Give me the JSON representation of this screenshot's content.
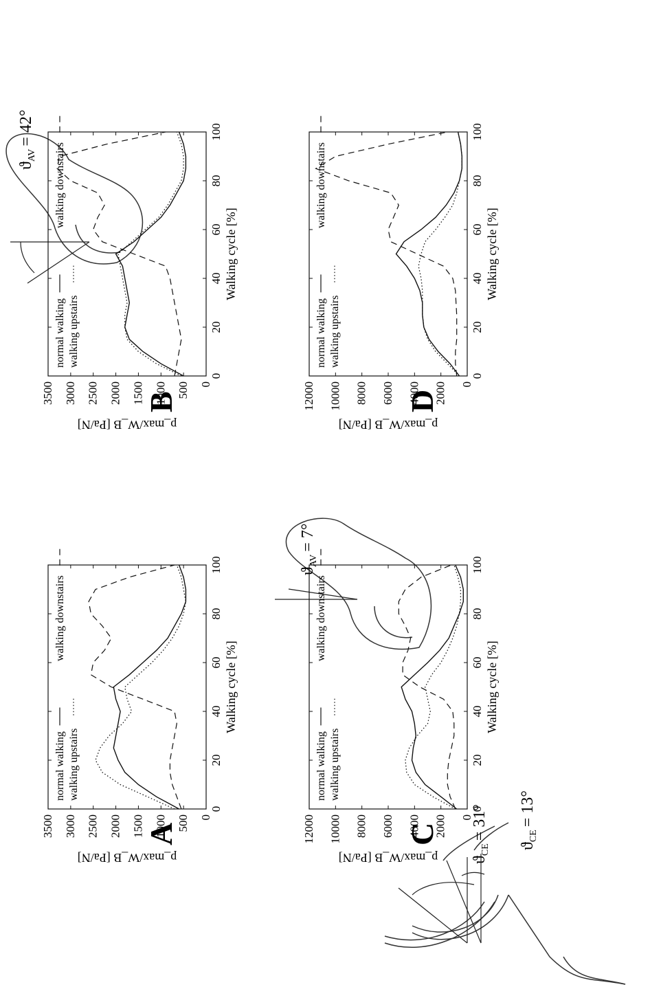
{
  "panels": [
    {
      "letter": "A",
      "angle": {
        "symbol": "ϑ",
        "sub": "AV",
        "value": "= 7°"
      }
    },
    {
      "letter": "B",
      "angle": {
        "symbol": "ϑ",
        "sub": "AV",
        "value": "= 42°"
      }
    },
    {
      "letter": "C"
    },
    {
      "letter": "D"
    }
  ],
  "side_figures": [
    {
      "symbol": "ϑ",
      "sub": "CE",
      "value": "= 31°"
    },
    {
      "symbol": "ϑ",
      "sub": "CE",
      "value": "= 13°"
    }
  ],
  "chart_data": [
    {
      "type": "line",
      "panel": "A",
      "xlabel": "Walking cycle [%]",
      "ylabel": "p_max/W_B [Pa/N]",
      "xlim": [
        0,
        100
      ],
      "ylim": [
        0,
        3500
      ],
      "xticks": [
        0,
        20,
        40,
        60,
        80,
        100
      ],
      "yticks": [
        0,
        500,
        1000,
        1500,
        2000,
        2500,
        3000,
        3500
      ],
      "legend": [
        "normal walking",
        "walking downstairs",
        "walking upstairs"
      ],
      "series": [
        {
          "name": "normal walking",
          "style": "solid",
          "x": [
            0,
            5,
            10,
            15,
            20,
            25,
            30,
            35,
            40,
            45,
            50,
            55,
            60,
            65,
            70,
            75,
            80,
            85,
            90,
            95,
            100
          ],
          "y": [
            600,
            1100,
            1500,
            1800,
            1950,
            2050,
            2000,
            1950,
            1900,
            2000,
            2050,
            1700,
            1400,
            1100,
            850,
            700,
            550,
            450,
            450,
            500,
            600
          ]
        },
        {
          "name": "walking upstairs",
          "style": "dotted",
          "x": [
            0,
            5,
            10,
            15,
            20,
            25,
            30,
            35,
            40,
            45,
            50,
            55,
            60,
            65,
            70,
            75,
            80,
            85,
            90,
            95,
            100
          ],
          "y": [
            700,
            1300,
            1900,
            2300,
            2450,
            2350,
            2150,
            1850,
            1650,
            1750,
            1800,
            1500,
            1200,
            950,
            750,
            600,
            500,
            450,
            500,
            550,
            650
          ]
        },
        {
          "name": "walking downstairs",
          "style": "dashed",
          "x": [
            0,
            5,
            10,
            15,
            20,
            25,
            30,
            35,
            40,
            45,
            50,
            55,
            60,
            65,
            70,
            75,
            80,
            85,
            90,
            95,
            100
          ],
          "y": [
            550,
            650,
            750,
            800,
            800,
            750,
            700,
            650,
            700,
            1400,
            2100,
            2550,
            2500,
            2250,
            2100,
            2300,
            2550,
            2600,
            2450,
            1700,
            700
          ]
        }
      ]
    },
    {
      "type": "line",
      "panel": "B",
      "xlabel": "Walking cycle [%]",
      "ylabel": "p_max/W_B [Pa/N]",
      "xlim": [
        0,
        100
      ],
      "ylim": [
        0,
        3500
      ],
      "xticks": [
        0,
        20,
        40,
        60,
        80,
        100
      ],
      "yticks": [
        0,
        500,
        1000,
        1500,
        2000,
        2500,
        3000,
        3500
      ],
      "legend": [
        "normal walking",
        "walking downstairs",
        "walking upstairs"
      ],
      "series": [
        {
          "name": "normal walking",
          "style": "solid",
          "x": [
            0,
            5,
            10,
            15,
            20,
            25,
            30,
            35,
            40,
            45,
            50,
            55,
            60,
            65,
            70,
            75,
            80,
            85,
            90,
            95,
            100
          ],
          "y": [
            500,
            1000,
            1400,
            1700,
            1800,
            1750,
            1700,
            1750,
            1800,
            1850,
            2000,
            1600,
            1300,
            1000,
            800,
            650,
            500,
            450,
            450,
            500,
            600
          ]
        },
        {
          "name": "walking upstairs",
          "style": "dotted",
          "x": [
            0,
            5,
            10,
            15,
            20,
            25,
            30,
            35,
            40,
            45,
            50,
            55,
            60,
            65,
            70,
            75,
            80,
            85,
            90,
            95,
            100
          ],
          "y": [
            550,
            1100,
            1500,
            1750,
            1800,
            1800,
            1750,
            1800,
            1850,
            1900,
            1950,
            1650,
            1350,
            1050,
            850,
            700,
            550,
            500,
            500,
            550,
            650
          ]
        },
        {
          "name": "walking downstairs",
          "style": "dashed",
          "x": [
            0,
            5,
            10,
            15,
            20,
            25,
            30,
            35,
            40,
            45,
            50,
            55,
            60,
            65,
            70,
            75,
            80,
            85,
            90,
            95,
            100
          ],
          "y": [
            700,
            650,
            600,
            550,
            600,
            650,
            700,
            750,
            800,
            900,
            1600,
            2300,
            2500,
            2400,
            2250,
            2400,
            3000,
            3300,
            3250,
            2200,
            900
          ]
        }
      ]
    },
    {
      "type": "line",
      "panel": "C",
      "xlabel": "Walking cycle [%]",
      "ylabel": "p_max/W_B [Pa/N]",
      "xlim": [
        0,
        100
      ],
      "ylim": [
        0,
        12000
      ],
      "xticks": [
        0,
        20,
        40,
        60,
        80,
        100
      ],
      "yticks": [
        0,
        2000,
        4000,
        6000,
        8000,
        10000,
        12000
      ],
      "legend": [
        "normal walking",
        "walking downstairs",
        "walking upstairs"
      ],
      "series": [
        {
          "name": "normal walking",
          "style": "solid",
          "x": [
            0,
            5,
            10,
            15,
            20,
            25,
            30,
            35,
            40,
            45,
            50,
            55,
            60,
            65,
            70,
            75,
            80,
            85,
            90,
            95,
            100
          ],
          "y": [
            800,
            2000,
            3200,
            3900,
            4200,
            4100,
            3900,
            4000,
            4200,
            4700,
            5000,
            4000,
            3000,
            2100,
            1400,
            1000,
            600,
            300,
            300,
            500,
            900
          ]
        },
        {
          "name": "walking upstairs",
          "style": "dotted",
          "x": [
            0,
            5,
            10,
            15,
            20,
            25,
            30,
            35,
            40,
            45,
            50,
            55,
            60,
            65,
            70,
            75,
            80,
            85,
            90,
            95,
            100
          ],
          "y": [
            900,
            2600,
            4000,
            4600,
            4700,
            4400,
            3800,
            3000,
            2800,
            3000,
            3200,
            2700,
            2000,
            1500,
            1100,
            800,
            600,
            500,
            500,
            700,
            1000
          ]
        },
        {
          "name": "walking downstairs",
          "style": "dashed",
          "x": [
            0,
            5,
            10,
            15,
            20,
            25,
            30,
            35,
            40,
            45,
            50,
            55,
            60,
            65,
            70,
            75,
            80,
            85,
            90,
            95,
            100
          ],
          "y": [
            900,
            1300,
            1500,
            1500,
            1400,
            1200,
            1000,
            1000,
            1100,
            1800,
            3600,
            4900,
            4900,
            4500,
            4300,
            4700,
            5200,
            5200,
            4700,
            3500,
            1200
          ]
        }
      ]
    },
    {
      "type": "line",
      "panel": "D",
      "xlabel": "Walking cycle [%]",
      "ylabel": "p_max/W_B [Pa/N]",
      "xlim": [
        0,
        100
      ],
      "ylim": [
        0,
        12000
      ],
      "xticks": [
        0,
        20,
        40,
        60,
        80,
        100
      ],
      "yticks": [
        0,
        2000,
        4000,
        6000,
        8000,
        10000,
        12000
      ],
      "legend": [
        "normal walking",
        "walking downstairs",
        "walking upstairs"
      ],
      "series": [
        {
          "name": "normal walking",
          "style": "solid",
          "x": [
            0,
            5,
            10,
            15,
            20,
            25,
            30,
            35,
            40,
            45,
            50,
            55,
            60,
            65,
            70,
            75,
            80,
            85,
            90,
            95,
            100
          ],
          "y": [
            600,
            1300,
            2200,
            2900,
            3300,
            3400,
            3400,
            3600,
            4000,
            4600,
            5400,
            4800,
            3500,
            2400,
            1600,
            1000,
            600,
            400,
            400,
            500,
            700
          ]
        },
        {
          "name": "walking upstairs",
          "style": "dotted",
          "x": [
            0,
            5,
            10,
            15,
            20,
            25,
            30,
            35,
            40,
            45,
            50,
            55,
            60,
            65,
            70,
            75,
            80,
            85,
            90,
            95,
            100
          ],
          "y": [
            600,
            1500,
            2400,
            3000,
            3300,
            3400,
            3400,
            3400,
            3500,
            3700,
            3500,
            3200,
            2400,
            1700,
            1100,
            800,
            600,
            400,
            400,
            500,
            700
          ]
        },
        {
          "name": "walking downstairs",
          "style": "dashed",
          "x": [
            0,
            5,
            10,
            15,
            20,
            25,
            30,
            35,
            40,
            45,
            50,
            55,
            60,
            65,
            70,
            75,
            80,
            85,
            90,
            95,
            100
          ],
          "y": [
            800,
            900,
            900,
            800,
            800,
            800,
            850,
            900,
            1100,
            1800,
            3800,
            5800,
            6000,
            5600,
            5200,
            5800,
            9000,
            11500,
            10000,
            6000,
            1500
          ]
        }
      ]
    }
  ]
}
